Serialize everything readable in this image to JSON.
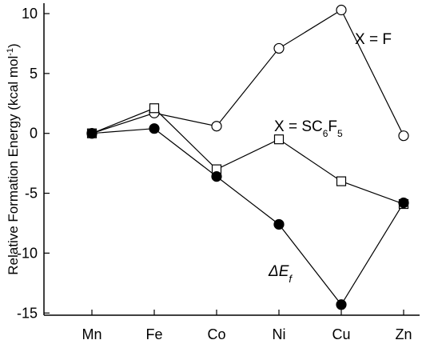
{
  "chart_data": {
    "type": "line",
    "categories": [
      "Mn",
      "Fe",
      "Co",
      "Ni",
      "Cu",
      "Zn"
    ],
    "ylabel": "Relative Formation Energy (kcal mol⁻¹)",
    "ylabel_main": "Relative Formation Energy (kcal mol",
    "ylabel_sup": "-1",
    "ylabel_close": ")",
    "ylim": [
      -15,
      11
    ],
    "yticks": [
      -15,
      -10,
      -5,
      0,
      5,
      10
    ],
    "grid": false,
    "legend": "none",
    "series": [
      {
        "marker": "open-circle",
        "values": [
          0,
          1.7,
          0.6,
          7.1,
          10.3,
          -0.2
        ]
      },
      {
        "marker": "open-square",
        "values": [
          0,
          2.1,
          -3.0,
          -0.5,
          -4.0,
          -5.9
        ]
      },
      {
        "marker": "filled-circle",
        "values": [
          0,
          0.4,
          -3.6,
          -7.6,
          -14.3,
          -5.8
        ]
      }
    ],
    "annotations": {
      "xf": {
        "text": "X = F"
      },
      "xsc": {
        "prefix": "X = SC",
        "sub1": "6",
        "mid": "F",
        "sub2": "5"
      },
      "def": {
        "delta": "ΔE",
        "sub": "f"
      }
    }
  }
}
